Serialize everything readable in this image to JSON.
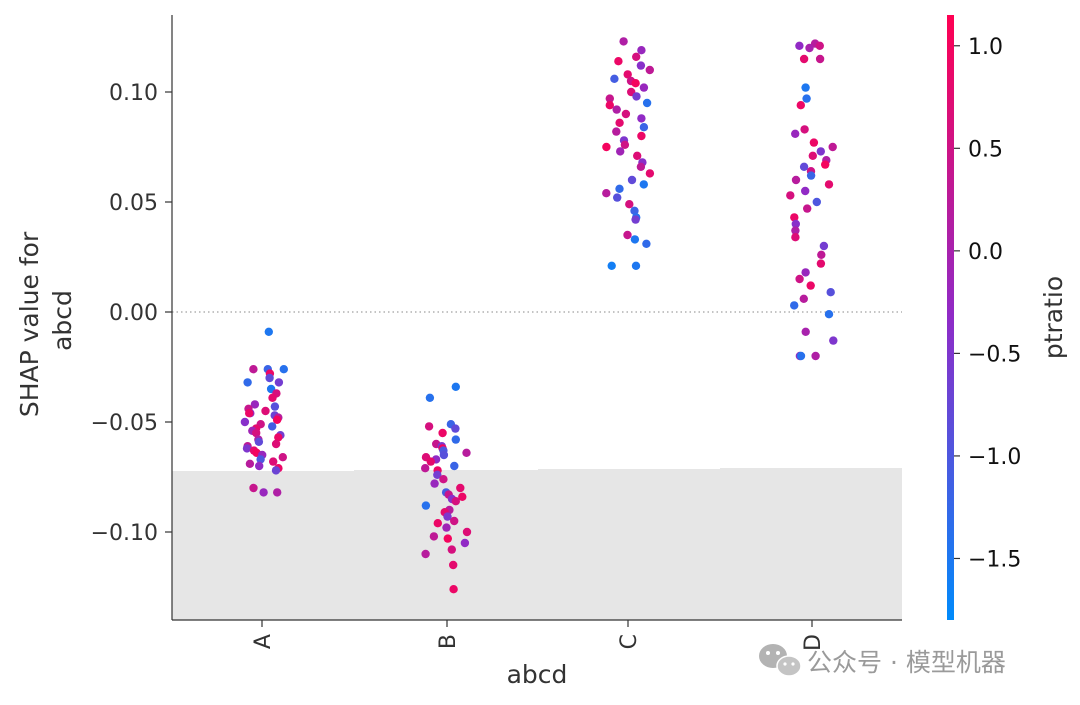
{
  "chart_data": {
    "type": "scatter",
    "plot_kind": "shap-dependence",
    "xlabel": "abcd",
    "ylabel_lines": [
      "SHAP value for",
      "abcd"
    ],
    "categories": [
      "A",
      "B",
      "C",
      "D"
    ],
    "ylim": [
      -0.14,
      0.135
    ],
    "y_ticks": [
      0.1,
      0.05,
      0.0,
      -0.05,
      -0.1
    ],
    "y_tick_labels": [
      "0.10",
      "0.05",
      "0.00",
      "−0.05",
      "−0.10"
    ],
    "zero_line": true,
    "background_histogram": true,
    "colorbar": {
      "label": "ptratio",
      "min": -1.8,
      "max": 1.15,
      "ticks": [
        1.0,
        0.5,
        0.0,
        -0.5,
        -1.0,
        -1.5
      ],
      "tick_labels": [
        "1.0",
        "0.5",
        "0.0",
        "−0.5",
        "−1.0",
        "−1.5"
      ],
      "color_low": "#008bfb",
      "color_mid": "#8f2bc7",
      "color_high": "#ff0052"
    },
    "series": [
      {
        "category": "A",
        "points": [
          {
            "y": -0.009,
            "c": -1.5
          },
          {
            "y": -0.026,
            "c": 0.3
          },
          {
            "y": -0.026,
            "c": -1.2
          },
          {
            "y": -0.026,
            "c": -1.4
          },
          {
            "y": -0.028,
            "c": 0.9
          },
          {
            "y": -0.03,
            "c": -0.8
          },
          {
            "y": -0.032,
            "c": -1.3
          },
          {
            "y": -0.032,
            "c": -0.6
          },
          {
            "y": -0.035,
            "c": -1.5
          },
          {
            "y": -0.037,
            "c": 0.6
          },
          {
            "y": -0.039,
            "c": 0.8
          },
          {
            "y": -0.042,
            "c": -0.2
          },
          {
            "y": -0.043,
            "c": -0.9
          },
          {
            "y": -0.044,
            "c": 0.4
          },
          {
            "y": -0.045,
            "c": 0.7
          },
          {
            "y": -0.046,
            "c": -0.3
          },
          {
            "y": -0.046,
            "c": 0.9
          },
          {
            "y": -0.047,
            "c": -0.7
          },
          {
            "y": -0.048,
            "c": 0.2
          },
          {
            "y": -0.049,
            "c": 1.0
          },
          {
            "y": -0.05,
            "c": -0.4
          },
          {
            "y": -0.051,
            "c": 0.5
          },
          {
            "y": -0.052,
            "c": -1.1
          },
          {
            "y": -0.053,
            "c": 0.8
          },
          {
            "y": -0.054,
            "c": -0.1
          },
          {
            "y": -0.055,
            "c": 0.6
          },
          {
            "y": -0.056,
            "c": -0.6
          },
          {
            "y": -0.057,
            "c": 0.9
          },
          {
            "y": -0.058,
            "c": 0.1
          },
          {
            "y": -0.059,
            "c": -0.8
          },
          {
            "y": -0.06,
            "c": 0.7
          },
          {
            "y": -0.061,
            "c": 0.3
          },
          {
            "y": -0.062,
            "c": -0.5
          },
          {
            "y": -0.063,
            "c": 0.8
          },
          {
            "y": -0.064,
            "c": 1.0
          },
          {
            "y": -0.065,
            "c": -0.2
          },
          {
            "y": -0.066,
            "c": 0.5
          },
          {
            "y": -0.067,
            "c": -1.0
          },
          {
            "y": -0.068,
            "c": 0.7
          },
          {
            "y": -0.069,
            "c": 0.2
          },
          {
            "y": -0.07,
            "c": -0.3
          },
          {
            "y": -0.071,
            "c": 0.9
          },
          {
            "y": -0.072,
            "c": -0.7
          },
          {
            "y": -0.08,
            "c": 0.4
          },
          {
            "y": -0.082,
            "c": -0.2
          },
          {
            "y": -0.082,
            "c": 0.1
          }
        ]
      },
      {
        "category": "B",
        "points": [
          {
            "y": -0.034,
            "c": -1.5
          },
          {
            "y": -0.039,
            "c": -1.4
          },
          {
            "y": -0.051,
            "c": -1.2
          },
          {
            "y": -0.052,
            "c": 0.6
          },
          {
            "y": -0.053,
            "c": -0.8
          },
          {
            "y": -0.055,
            "c": 0.9
          },
          {
            "y": -0.058,
            "c": -1.3
          },
          {
            "y": -0.06,
            "c": 0.4
          },
          {
            "y": -0.061,
            "c": -0.5
          },
          {
            "y": -0.062,
            "c": 1.0
          },
          {
            "y": -0.063,
            "c": -1.0
          },
          {
            "y": -0.064,
            "c": 0.2
          },
          {
            "y": -0.065,
            "c": -0.9
          },
          {
            "y": -0.066,
            "c": 0.7
          },
          {
            "y": -0.067,
            "c": -0.3
          },
          {
            "y": -0.068,
            "c": 0.8
          },
          {
            "y": -0.07,
            "c": -1.2
          },
          {
            "y": -0.071,
            "c": 0.3
          },
          {
            "y": -0.072,
            "c": 0.9
          },
          {
            "y": -0.074,
            "c": -0.6
          },
          {
            "y": -0.076,
            "c": 0.5
          },
          {
            "y": -0.078,
            "c": -0.2
          },
          {
            "y": -0.08,
            "c": 0.8
          },
          {
            "y": -0.082,
            "c": -1.1
          },
          {
            "y": -0.083,
            "c": 0.4
          },
          {
            "y": -0.084,
            "c": 0.9
          },
          {
            "y": -0.085,
            "c": -0.4
          },
          {
            "y": -0.086,
            "c": 0.6
          },
          {
            "y": -0.088,
            "c": -1.4
          },
          {
            "y": -0.09,
            "c": 0.2
          },
          {
            "y": -0.091,
            "c": 0.8
          },
          {
            "y": -0.093,
            "c": -0.5
          },
          {
            "y": -0.095,
            "c": 0.5
          },
          {
            "y": -0.096,
            "c": 0.9
          },
          {
            "y": -0.098,
            "c": -0.1
          },
          {
            "y": -0.1,
            "c": 0.7
          },
          {
            "y": -0.102,
            "c": 0.3
          },
          {
            "y": -0.103,
            "c": 1.0
          },
          {
            "y": -0.105,
            "c": -0.3
          },
          {
            "y": -0.108,
            "c": 0.6
          },
          {
            "y": -0.11,
            "c": 0.2
          },
          {
            "y": -0.115,
            "c": 0.8
          },
          {
            "y": -0.126,
            "c": 0.9
          }
        ]
      },
      {
        "category": "C",
        "points": [
          {
            "y": 0.123,
            "c": 0.1
          },
          {
            "y": 0.119,
            "c": -0.2
          },
          {
            "y": 0.116,
            "c": 0.6
          },
          {
            "y": 0.114,
            "c": 0.9
          },
          {
            "y": 0.112,
            "c": -0.4
          },
          {
            "y": 0.11,
            "c": 0.3
          },
          {
            "y": 0.108,
            "c": 0.8
          },
          {
            "y": 0.106,
            "c": -1.1
          },
          {
            "y": 0.105,
            "c": 0.5
          },
          {
            "y": 0.104,
            "c": 1.0
          },
          {
            "y": 0.102,
            "c": -0.2
          },
          {
            "y": 0.1,
            "c": 0.7
          },
          {
            "y": 0.098,
            "c": -0.6
          },
          {
            "y": 0.097,
            "c": 0.4
          },
          {
            "y": 0.095,
            "c": -1.4
          },
          {
            "y": 0.094,
            "c": 0.9
          },
          {
            "y": 0.092,
            "c": 0.1
          },
          {
            "y": 0.09,
            "c": 0.6
          },
          {
            "y": 0.088,
            "c": -0.3
          },
          {
            "y": 0.086,
            "c": 0.8
          },
          {
            "y": 0.084,
            "c": -1.2
          },
          {
            "y": 0.082,
            "c": 0.2
          },
          {
            "y": 0.08,
            "c": 0.9
          },
          {
            "y": 0.078,
            "c": -0.5
          },
          {
            "y": 0.076,
            "c": 0.5
          },
          {
            "y": 0.075,
            "c": 1.0
          },
          {
            "y": 0.073,
            "c": -0.1
          },
          {
            "y": 0.071,
            "c": 0.7
          },
          {
            "y": 0.068,
            "c": -0.4
          },
          {
            "y": 0.066,
            "c": 0.3
          },
          {
            "y": 0.063,
            "c": 0.8
          },
          {
            "y": 0.06,
            "c": -0.8
          },
          {
            "y": 0.058,
            "c": -1.5
          },
          {
            "y": 0.056,
            "c": -1.3
          },
          {
            "y": 0.054,
            "c": 0.2
          },
          {
            "y": 0.052,
            "c": -0.9
          },
          {
            "y": 0.049,
            "c": 0.6
          },
          {
            "y": 0.046,
            "c": -1.2
          },
          {
            "y": 0.043,
            "c": -1.4
          },
          {
            "y": 0.042,
            "c": -0.6
          },
          {
            "y": 0.035,
            "c": 0.4
          },
          {
            "y": 0.033,
            "c": -1.5
          },
          {
            "y": 0.031,
            "c": -1.3
          },
          {
            "y": 0.021,
            "c": -1.5
          },
          {
            "y": 0.021,
            "c": -1.6
          }
        ]
      },
      {
        "category": "D",
        "points": [
          {
            "y": 0.122,
            "c": 0.2
          },
          {
            "y": 0.121,
            "c": -0.3
          },
          {
            "y": 0.121,
            "c": 0.5
          },
          {
            "y": 0.12,
            "c": 0.0
          },
          {
            "y": 0.115,
            "c": 0.8
          },
          {
            "y": 0.115,
            "c": 0.4
          },
          {
            "y": 0.102,
            "c": -1.5
          },
          {
            "y": 0.097,
            "c": -1.4
          },
          {
            "y": 0.094,
            "c": 0.9
          },
          {
            "y": 0.083,
            "c": 0.6
          },
          {
            "y": 0.081,
            "c": -0.2
          },
          {
            "y": 0.077,
            "c": 0.9
          },
          {
            "y": 0.075,
            "c": 0.3
          },
          {
            "y": 0.073,
            "c": -0.5
          },
          {
            "y": 0.071,
            "c": 0.7
          },
          {
            "y": 0.069,
            "c": 0.1
          },
          {
            "y": 0.067,
            "c": 1.0
          },
          {
            "y": 0.066,
            "c": -0.8
          },
          {
            "y": 0.064,
            "c": 0.5
          },
          {
            "y": 0.062,
            "c": -1.2
          },
          {
            "y": 0.06,
            "c": 0.2
          },
          {
            "y": 0.058,
            "c": 0.8
          },
          {
            "y": 0.055,
            "c": -0.3
          },
          {
            "y": 0.053,
            "c": 0.6
          },
          {
            "y": 0.05,
            "c": -1.0
          },
          {
            "y": 0.047,
            "c": 0.4
          },
          {
            "y": 0.043,
            "c": 0.9
          },
          {
            "y": 0.04,
            "c": -0.4
          },
          {
            "y": 0.037,
            "c": 0.1
          },
          {
            "y": 0.034,
            "c": 0.7
          },
          {
            "y": 0.03,
            "c": -0.6
          },
          {
            "y": 0.026,
            "c": 0.3
          },
          {
            "y": 0.022,
            "c": 0.8
          },
          {
            "y": 0.018,
            "c": -0.2
          },
          {
            "y": 0.015,
            "c": 0.5
          },
          {
            "y": 0.012,
            "c": 0.9
          },
          {
            "y": 0.009,
            "c": -0.9
          },
          {
            "y": 0.006,
            "c": 0.2
          },
          {
            "y": 0.003,
            "c": -1.3
          },
          {
            "y": -0.001,
            "c": -1.4
          },
          {
            "y": -0.009,
            "c": 0.0
          },
          {
            "y": -0.013,
            "c": -0.5
          },
          {
            "y": -0.02,
            "c": -0.2
          },
          {
            "y": -0.02,
            "c": -1.4
          },
          {
            "y": -0.02,
            "c": 0.1
          }
        ]
      }
    ]
  },
  "watermark": {
    "icon": "wechat-icon",
    "text": "公众号 · 模型机器"
  }
}
